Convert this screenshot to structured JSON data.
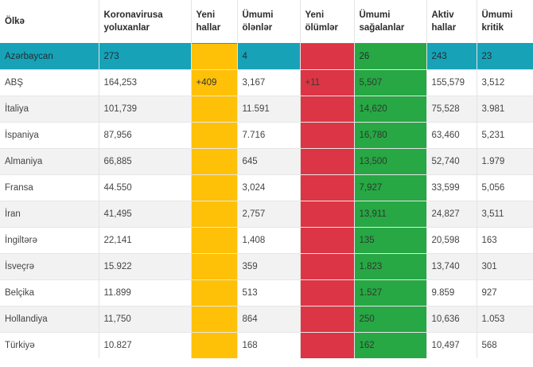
{
  "colors": {
    "highlight": "#17a2b8",
    "new_cases": "#ffc107",
    "new_deaths": "#dc3545",
    "recovered": "#28a745",
    "row_alt": "#f2f2f2"
  },
  "table": {
    "headers": [
      {
        "line1": "Ölkə",
        "line2": ""
      },
      {
        "line1": "Koronavirusa",
        "line2": "yoluxanlar"
      },
      {
        "line1": "Yeni",
        "line2": "hallar"
      },
      {
        "line1": "Ümumi",
        "line2": "ölənlər"
      },
      {
        "line1": "Yeni",
        "line2": "ölümlər"
      },
      {
        "line1": "Ümumi",
        "line2": "sağalanlar"
      },
      {
        "line1": "Aktiv",
        "line2": "hallar"
      },
      {
        "line1": "Ümumi",
        "line2": "kritik"
      }
    ],
    "rows": [
      [
        "Azərbaycan",
        "273",
        "",
        "4",
        "",
        "26",
        "243",
        "23"
      ],
      [
        "ABŞ",
        "164,253",
        "+409",
        "3,167",
        "+11",
        "5,507",
        "155,579",
        "3,512"
      ],
      [
        "İtaliya",
        "101,739",
        "",
        "11.591",
        "",
        "14,620",
        "75,528",
        "3.981"
      ],
      [
        "İspaniya",
        "87,956",
        "",
        "7.716",
        "",
        "16,780",
        "63,460",
        "5,231"
      ],
      [
        "Almaniya",
        "66,885",
        "",
        "645",
        "",
        "13,500",
        "52,740",
        "1.979"
      ],
      [
        "Fransa",
        "44.550",
        "",
        "3,024",
        "",
        "7,927",
        "33,599",
        "5,056"
      ],
      [
        "İran",
        "41,495",
        "",
        "2,757",
        "",
        "13,911",
        "24,827",
        "3,511"
      ],
      [
        "İngiltərə",
        "22,141",
        "",
        "1,408",
        "",
        "135",
        "20,598",
        "163"
      ],
      [
        "İsveçrə",
        "15.922",
        "",
        "359",
        "",
        "1.823",
        "13,740",
        "301"
      ],
      [
        "Belçika",
        "11.899",
        "",
        "513",
        "",
        "1.527",
        "9.859",
        "927"
      ],
      [
        "Hollandiya",
        "11,750",
        "",
        "864",
        "",
        "250",
        "10,636",
        "1.053"
      ],
      [
        "Türkiyə",
        "10.827",
        "",
        "168",
        "",
        "162",
        "10,497",
        "568"
      ]
    ]
  }
}
